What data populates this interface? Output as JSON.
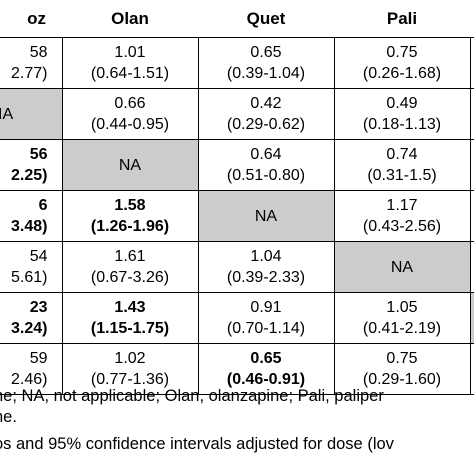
{
  "table": {
    "headers": [
      "oz",
      "Olan",
      "Quet",
      "Pali",
      ""
    ],
    "rows": [
      {
        "name": "row-1",
        "cells": [
          {
            "type": "value",
            "est": "58",
            "ci": "2.77)",
            "bold": false
          },
          {
            "type": "value",
            "est": "1.01",
            "ci": "(0.64-1.51)",
            "bold": false
          },
          {
            "type": "value",
            "est": "0.65",
            "ci": "(0.39-1.04)",
            "bold": false
          },
          {
            "type": "value",
            "est": "0.75",
            "ci": "(0.26-1.68)",
            "bold": false
          },
          {
            "type": "edge",
            "grey": false
          }
        ]
      },
      {
        "name": "row-2",
        "cells": [
          {
            "type": "na-first",
            "label": "IA"
          },
          {
            "type": "value",
            "est": "0.66",
            "ci": "(0.44-0.95)",
            "bold": false
          },
          {
            "type": "value",
            "est": "0.42",
            "ci": "(0.29-0.62)",
            "bold": false
          },
          {
            "type": "value",
            "est": "0.49",
            "ci": "(0.18-1.13)",
            "bold": false
          },
          {
            "type": "edge",
            "grey": false
          }
        ]
      },
      {
        "name": "row-3",
        "cells": [
          {
            "type": "value",
            "est": "56",
            "ci": "2.25)",
            "bold": true
          },
          {
            "type": "na",
            "label": "NA"
          },
          {
            "type": "value",
            "est": "0.64",
            "ci": "(0.51-0.80)",
            "bold": false
          },
          {
            "type": "value",
            "est": "0.74",
            "ci": "(0.31-1.5)",
            "bold": false
          },
          {
            "type": "edge",
            "grey": false
          }
        ]
      },
      {
        "name": "row-4",
        "cells": [
          {
            "type": "value",
            "est": "6",
            "ci": "3.48)",
            "bold": true
          },
          {
            "type": "value",
            "est": "1.58",
            "ci": "(1.26-1.96)",
            "bold": true
          },
          {
            "type": "na",
            "label": "NA"
          },
          {
            "type": "value",
            "est": "1.17",
            "ci": "(0.43-2.56)",
            "bold": false
          },
          {
            "type": "edge",
            "grey": false
          }
        ]
      },
      {
        "name": "row-5",
        "cells": [
          {
            "type": "value",
            "est": "54",
            "ci": "5.61)",
            "bold": false
          },
          {
            "type": "value",
            "est": "1.61",
            "ci": "(0.67-3.26)",
            "bold": false
          },
          {
            "type": "value",
            "est": "1.04",
            "ci": "(0.39-2.33)",
            "bold": false
          },
          {
            "type": "na",
            "label": "NA"
          },
          {
            "type": "edge",
            "grey": false
          }
        ]
      },
      {
        "name": "row-6",
        "cells": [
          {
            "type": "value",
            "est": "23",
            "ci": "3.24)",
            "bold": true
          },
          {
            "type": "value",
            "est": "1.43",
            "ci": "(1.15-1.75)",
            "bold": true
          },
          {
            "type": "value",
            "est": "0.91",
            "ci": "(0.70-1.14)",
            "bold": false
          },
          {
            "type": "value",
            "est": "1.05",
            "ci": "(0.41-2.19)",
            "bold": false
          },
          {
            "type": "edge",
            "grey": true
          }
        ]
      },
      {
        "name": "row-7",
        "cells": [
          {
            "type": "value",
            "est": "59",
            "ci": "2.46)",
            "bold": false
          },
          {
            "type": "value",
            "est": "1.02",
            "ci": "(0.77-1.36)",
            "bold": false
          },
          {
            "type": "value",
            "est": "0.65",
            "ci": "(0.46-0.91)",
            "bold": true
          },
          {
            "type": "value",
            "est": "0.75",
            "ci": "(0.29-1.60)",
            "bold": false
          },
          {
            "type": "edge",
            "grey": false
          }
        ]
      }
    ]
  },
  "footnotes": {
    "line1": "ne; NA, not applicable; Olan, olanzapine; Pali, paliper",
    "line2": "ne.",
    "line3": "os and 95% confidence intervals adjusted for dose (lov"
  }
}
